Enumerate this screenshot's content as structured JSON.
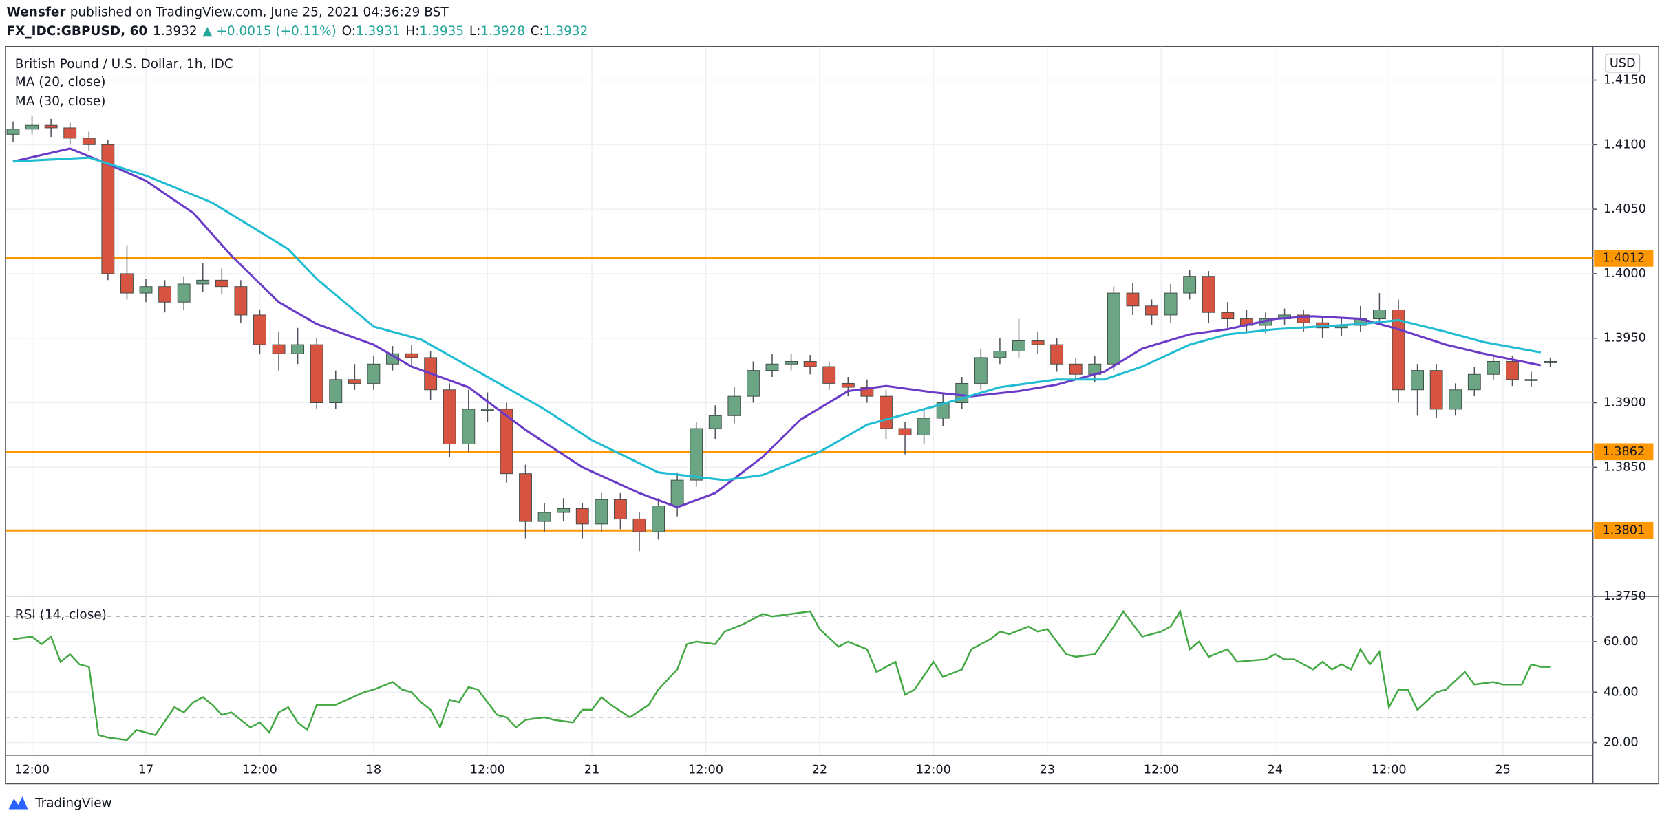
{
  "header": {
    "author": "Wensfer",
    "published": "published on TradingView.com, June 25, 2021 04:36:29 BST",
    "symbol": "FX_IDC:GBPUSD, 60",
    "price": 1.3932,
    "change": "▲ +0.0015 (+0.11%)",
    "ohlc": [
      {
        "label": "O:",
        "value": 1.3931
      },
      {
        "label": "H:",
        "value": 1.3935
      },
      {
        "label": "L:",
        "value": 1.3928
      },
      {
        "label": "C:",
        "value": 1.3932
      }
    ]
  },
  "chart_data": [
    {
      "type": "candlestick",
      "title": "British Pound / U.S. Dollar, 1h, IDC",
      "currency": "USD",
      "x": [
        -2,
        0,
        2,
        4,
        6,
        8,
        10,
        12,
        14,
        16,
        18,
        20,
        22,
        24,
        26,
        28,
        30,
        32,
        34,
        36,
        38,
        40,
        42,
        44,
        46,
        48,
        50,
        52,
        54,
        56,
        58,
        60,
        62,
        64,
        66,
        68,
        70,
        72,
        74,
        76,
        78,
        80,
        82,
        84,
        86,
        88,
        90,
        92,
        94,
        96,
        98,
        100,
        102,
        104,
        106,
        108,
        110,
        112,
        114,
        116,
        118,
        120,
        122,
        124,
        126,
        128,
        130,
        132,
        134,
        136,
        138,
        140,
        142,
        144,
        146,
        148,
        150,
        152,
        154,
        156,
        158,
        160
      ],
      "open": [
        1.4108,
        1.4112,
        1.4115,
        1.4113,
        1.4105,
        1.41,
        1.4,
        1.3985,
        1.399,
        1.3978,
        1.3992,
        1.3995,
        1.399,
        1.3968,
        1.3945,
        1.3938,
        1.3945,
        1.39,
        1.3918,
        1.3915,
        1.393,
        1.3938,
        1.3935,
        1.391,
        1.3868,
        1.3895,
        1.3895,
        1.3845,
        1.3808,
        1.3815,
        1.3818,
        1.3806,
        1.3825,
        1.381,
        1.38,
        1.382,
        1.384,
        1.388,
        1.389,
        1.3905,
        1.3925,
        1.393,
        1.3932,
        1.3928,
        1.3915,
        1.3912,
        1.3905,
        1.388,
        1.3875,
        1.3888,
        1.39,
        1.3915,
        1.3935,
        1.394,
        1.3948,
        1.3945,
        1.393,
        1.3922,
        1.393,
        1.3985,
        1.3975,
        1.3968,
        1.3985,
        1.3998,
        1.397,
        1.3965,
        1.396,
        1.3965,
        1.3968,
        1.3962,
        1.3958,
        1.396,
        1.3965,
        1.3972,
        1.391,
        1.3925,
        1.3895,
        1.391,
        1.3922,
        1.3932,
        1.3918,
        1.3931
      ],
      "high": [
        1.4118,
        1.4122,
        1.412,
        1.4117,
        1.411,
        1.4104,
        1.4022,
        1.3996,
        1.3995,
        1.3998,
        1.4008,
        1.4004,
        1.3995,
        1.3972,
        1.3955,
        1.3958,
        1.395,
        1.3925,
        1.393,
        1.3936,
        1.3944,
        1.3945,
        1.394,
        1.3915,
        1.391,
        1.3908,
        1.39,
        1.3852,
        1.3822,
        1.3826,
        1.3822,
        1.383,
        1.383,
        1.3815,
        1.3826,
        1.3846,
        1.3885,
        1.3898,
        1.3912,
        1.3932,
        1.3938,
        1.3938,
        1.3937,
        1.3932,
        1.392,
        1.3918,
        1.391,
        1.3885,
        1.3894,
        1.3908,
        1.392,
        1.3942,
        1.395,
        1.3965,
        1.3955,
        1.395,
        1.3935,
        1.3936,
        1.399,
        1.3993,
        1.398,
        1.3992,
        1.4003,
        1.4002,
        1.3978,
        1.3972,
        1.397,
        1.3973,
        1.3972,
        1.3966,
        1.3966,
        1.3975,
        1.3985,
        1.398,
        1.393,
        1.393,
        1.3915,
        1.3928,
        1.3937,
        1.3936,
        1.3924,
        1.3935
      ],
      "low": [
        1.4102,
        1.4108,
        1.4106,
        1.41,
        1.4095,
        1.3995,
        1.398,
        1.3978,
        1.397,
        1.3972,
        1.3986,
        1.3984,
        1.3962,
        1.3938,
        1.3925,
        1.393,
        1.3895,
        1.3895,
        1.391,
        1.391,
        1.3925,
        1.3928,
        1.3902,
        1.3858,
        1.3862,
        1.3885,
        1.3838,
        1.3795,
        1.38,
        1.3808,
        1.3795,
        1.38,
        1.3802,
        1.3785,
        1.3794,
        1.3812,
        1.3835,
        1.3872,
        1.3884,
        1.39,
        1.392,
        1.3925,
        1.3922,
        1.391,
        1.3905,
        1.39,
        1.3872,
        1.386,
        1.3868,
        1.3882,
        1.3895,
        1.391,
        1.393,
        1.3935,
        1.3938,
        1.3924,
        1.3918,
        1.3916,
        1.3925,
        1.3968,
        1.396,
        1.3962,
        1.398,
        1.3962,
        1.3958,
        1.3955,
        1.3954,
        1.396,
        1.3955,
        1.395,
        1.3952,
        1.3955,
        1.396,
        1.39,
        1.389,
        1.3888,
        1.389,
        1.3905,
        1.3918,
        1.3913,
        1.3912,
        1.3928
      ],
      "close": [
        1.4112,
        1.4115,
        1.4113,
        1.4105,
        1.41,
        1.4,
        1.3985,
        1.399,
        1.3978,
        1.3992,
        1.3995,
        1.399,
        1.3968,
        1.3945,
        1.3938,
        1.3945,
        1.39,
        1.3918,
        1.3915,
        1.393,
        1.3938,
        1.3935,
        1.391,
        1.3868,
        1.3895,
        1.3895,
        1.3845,
        1.3808,
        1.3815,
        1.3818,
        1.3806,
        1.3825,
        1.381,
        1.38,
        1.382,
        1.384,
        1.388,
        1.389,
        1.3905,
        1.3925,
        1.393,
        1.3932,
        1.3928,
        1.3915,
        1.3912,
        1.3905,
        1.388,
        1.3875,
        1.3888,
        1.39,
        1.3915,
        1.3935,
        1.394,
        1.3948,
        1.3945,
        1.393,
        1.3922,
        1.393,
        1.3985,
        1.3975,
        1.3968,
        1.3985,
        1.3998,
        1.397,
        1.3965,
        1.396,
        1.3965,
        1.3968,
        1.3962,
        1.3958,
        1.396,
        1.3965,
        1.3972,
        1.391,
        1.3925,
        1.3895,
        1.391,
        1.3922,
        1.3932,
        1.3918,
        1.3918,
        1.3932
      ],
      "up_color": "#6ba583",
      "down_color": "#d75442",
      "lines": [
        {
          "name": "MA (20, close)",
          "color": "#6a3bc8",
          "x": [
            -2,
            4,
            8,
            12,
            17,
            21,
            26,
            30,
            36,
            40,
            46,
            52,
            58,
            64,
            68,
            72,
            77,
            81,
            86,
            90,
            95,
            99,
            104,
            108,
            113,
            117,
            122,
            126,
            131,
            135,
            140,
            144,
            149,
            153,
            159
          ],
          "values": [
            1.4087,
            1.4097,
            1.4085,
            1.4072,
            1.4047,
            1.4014,
            1.3978,
            1.3961,
            1.3945,
            1.3928,
            1.3912,
            1.3879,
            1.385,
            1.383,
            1.3819,
            1.383,
            1.3858,
            1.3887,
            1.3909,
            1.3913,
            1.3908,
            1.3905,
            1.3909,
            1.3914,
            1.3924,
            1.3942,
            1.3953,
            1.3957,
            1.3965,
            1.3967,
            1.3965,
            1.3957,
            1.3945,
            1.3938,
            1.3929
          ]
        },
        {
          "name": "MA (30, close)",
          "color": "#1fbcd2",
          "x": [
            -2,
            6,
            12,
            19,
            27,
            30,
            36,
            41,
            48,
            54,
            59,
            66,
            73,
            77,
            83,
            88,
            95,
            102,
            108,
            113,
            117,
            122,
            126,
            131,
            140,
            144,
            149,
            153,
            159
          ],
          "values": [
            1.4087,
            1.409,
            1.4076,
            1.4055,
            1.4019,
            1.3996,
            1.3959,
            1.3949,
            1.392,
            1.3895,
            1.3871,
            1.3846,
            1.384,
            1.3844,
            1.3862,
            1.3883,
            1.3897,
            1.3912,
            1.3918,
            1.3918,
            1.3928,
            1.3945,
            1.3953,
            1.3957,
            1.3961,
            1.3964,
            1.3955,
            1.3947,
            1.3939
          ]
        }
      ],
      "levels": [
        1.4012,
        1.3862,
        1.3801
      ],
      "level_color": "#ff9800",
      "xlim": [
        -2.8,
        164.5
      ],
      "xticks": [
        {
          "value": 0,
          "label": "12:00"
        },
        {
          "value": 12,
          "label": "17"
        },
        {
          "value": 24,
          "label": "12:00"
        },
        {
          "value": 36,
          "label": "18"
        },
        {
          "value": 48,
          "label": "12:00"
        },
        {
          "value": 59,
          "label": "21"
        },
        {
          "value": 71,
          "label": "12:00"
        },
        {
          "value": 83,
          "label": "22"
        },
        {
          "value": 95,
          "label": "12:00"
        },
        {
          "value": 107,
          "label": "23"
        },
        {
          "value": 119,
          "label": "12:00"
        },
        {
          "value": 131,
          "label": "24"
        },
        {
          "value": 143,
          "label": "12:00"
        },
        {
          "value": 155,
          "label": "25"
        }
      ],
      "ylim": [
        1.375,
        1.4176
      ],
      "yticks": [
        {
          "value": 1.375,
          "label": "1.3750"
        },
        {
          "value": 1.385,
          "label": "1.3850"
        },
        {
          "value": 1.39,
          "label": "1.3900"
        },
        {
          "value": 1.395,
          "label": "1.3950"
        },
        {
          "value": 1.4,
          "label": "1.4000"
        },
        {
          "value": 1.405,
          "label": "1.4050"
        },
        {
          "value": 1.41,
          "label": "1.4100"
        },
        {
          "value": 1.415,
          "label": "1.4150"
        }
      ],
      "grid": true
    },
    {
      "type": "line",
      "series": [
        {
          "name": "RSI (14, close)",
          "color": "#43a843",
          "x": [
            -2,
            0,
            1,
            2,
            3,
            4,
            5,
            6,
            7,
            8,
            10,
            11,
            12,
            13,
            15,
            16,
            17,
            18,
            19,
            20,
            21,
            23,
            24,
            25,
            26,
            27,
            28,
            29,
            30,
            32,
            35,
            36,
            38,
            39,
            40,
            41,
            42,
            43,
            44,
            45,
            46,
            47,
            49,
            50,
            51,
            52,
            54,
            55,
            57,
            58,
            59,
            60,
            61,
            63,
            65,
            66,
            68,
            69,
            70,
            72,
            73,
            75,
            77,
            78,
            80,
            82,
            83,
            85,
            86,
            88,
            89,
            91,
            92,
            93,
            95,
            96,
            98,
            99,
            101,
            102,
            103,
            105,
            106,
            107,
            109,
            110,
            112,
            114,
            115,
            117,
            119,
            120,
            121,
            122,
            123,
            124,
            126,
            127,
            130,
            131,
            132,
            133,
            135,
            136,
            137,
            138,
            139,
            140,
            141,
            142,
            143,
            144,
            145,
            146,
            148,
            149,
            151,
            152,
            154,
            155,
            157,
            158,
            159,
            160
          ],
          "values": [
            61,
            62,
            59,
            62,
            52,
            55,
            51,
            50,
            23,
            22,
            21,
            25,
            24,
            23,
            34,
            32,
            36,
            38,
            35,
            31,
            32,
            26,
            28,
            24,
            32,
            34,
            28,
            25,
            35,
            35,
            40,
            41,
            44,
            41,
            40,
            36,
            33,
            26,
            37,
            36,
            42,
            41,
            31,
            30,
            26,
            29,
            30,
            29,
            28,
            33,
            33,
            38,
            35,
            30,
            35,
            41,
            49,
            59,
            60,
            59,
            64,
            67,
            71,
            70,
            71,
            72,
            65,
            58,
            60,
            57,
            48,
            52,
            39,
            41,
            52,
            46,
            49,
            57,
            61,
            64,
            63,
            66,
            64,
            65,
            55,
            54,
            55,
            66,
            72,
            62,
            64,
            66,
            72,
            57,
            60,
            54,
            57,
            52,
            53,
            55,
            53,
            53,
            49,
            52,
            49,
            51,
            49,
            57,
            51,
            56,
            34,
            41,
            41,
            33,
            40,
            41,
            48,
            43,
            44,
            43,
            43,
            51,
            50,
            50
          ]
        }
      ],
      "bands": [
        30,
        70
      ],
      "ylim": [
        15,
        78
      ],
      "yticks": [
        {
          "value": 20,
          "label": "20.00"
        },
        {
          "value": 40,
          "label": "40.00"
        },
        {
          "value": 60,
          "label": "60.00"
        }
      ],
      "grid": true
    }
  ],
  "footer": {
    "brand": "TradingView"
  }
}
